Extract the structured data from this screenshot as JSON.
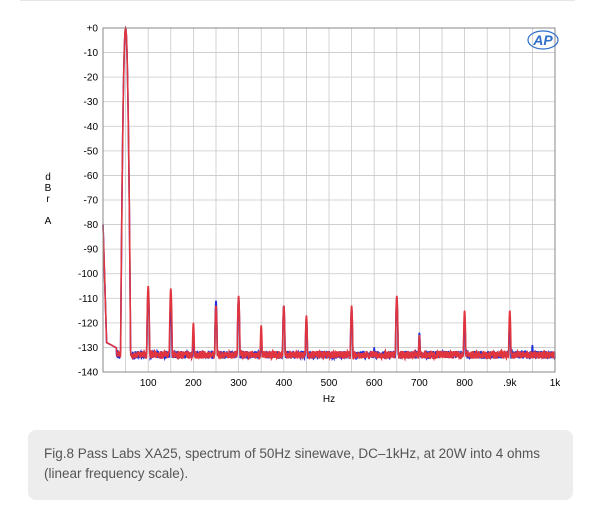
{
  "caption": "Fig.8 Pass Labs XA25, spectrum of 50Hz sinewave, DC–1kHz, at 20W into 4 ohms (linear frequency scale).",
  "chart_data": {
    "type": "line",
    "logo": "AP",
    "xlabel": "Hz",
    "ylabel_chars": [
      "d",
      "B",
      "r",
      "",
      "A"
    ],
    "xlim": [
      0,
      1000
    ],
    "ylim": [
      -140,
      0
    ],
    "grid": true,
    "y_ticks": [
      0,
      -10,
      -20,
      -30,
      -40,
      -50,
      -60,
      -70,
      -80,
      -90,
      -100,
      -110,
      -120,
      -130,
      -140
    ],
    "y_tick_labels": [
      "+0",
      "-10",
      "-20",
      "-30",
      "-40",
      "-50",
      "-60",
      "-70",
      "-80",
      "-90",
      "-100",
      "-110",
      "-120",
      "-130",
      "-140"
    ],
    "x_ticks": [
      100,
      200,
      300,
      400,
      500,
      600,
      700,
      800,
      900,
      1000
    ],
    "x_tick_labels": [
      "100",
      "200",
      "300",
      "400",
      "500",
      "600",
      "700",
      "800",
      ".9k",
      "1k"
    ],
    "colors": {
      "left": "#1f2fd6",
      "right": "#e0353f",
      "grid": "#c8c8c8"
    },
    "floor_db": -133,
    "series": [
      {
        "channel": "left",
        "peaks": [
          [
            50,
            0
          ],
          [
            100,
            -107
          ],
          [
            150,
            -112
          ],
          [
            200,
            -124
          ],
          [
            250,
            -111
          ],
          [
            300,
            -110
          ],
          [
            350,
            -126
          ],
          [
            400,
            -113
          ],
          [
            450,
            -118
          ],
          [
            480,
            -132
          ],
          [
            550,
            -114
          ],
          [
            600,
            -130
          ],
          [
            650,
            -110
          ],
          [
            700,
            -124
          ],
          [
            750,
            -133
          ],
          [
            800,
            -118
          ],
          [
            900,
            -120
          ],
          [
            950,
            -129
          ]
        ]
      },
      {
        "channel": "right",
        "peaks": [
          [
            50,
            0
          ],
          [
            100,
            -105
          ],
          [
            150,
            -106
          ],
          [
            200,
            -120
          ],
          [
            250,
            -113
          ],
          [
            300,
            -109
          ],
          [
            350,
            -121
          ],
          [
            400,
            -113
          ],
          [
            450,
            -117
          ],
          [
            500,
            -132
          ],
          [
            550,
            -113
          ],
          [
            600,
            -133
          ],
          [
            650,
            -109
          ],
          [
            700,
            -125
          ],
          [
            750,
            -133
          ],
          [
            800,
            -115
          ],
          [
            900,
            -115
          ],
          [
            950,
            -133
          ]
        ]
      }
    ]
  }
}
